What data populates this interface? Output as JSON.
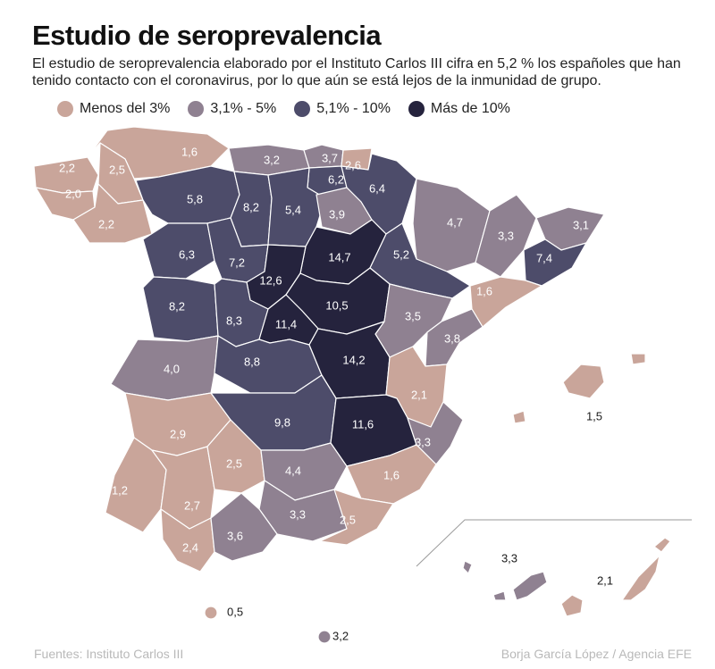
{
  "header": {
    "title": "Estudio de seroprevalencia",
    "subtitle": "El estudio de seroprevalencia elaborado por el Instituto Carlos III cifra en 5,2 % los españoles que han tenido contacto con el coronavirus, por lo que aún se está lejos de la inmunidad de grupo."
  },
  "legend": [
    {
      "label": "Menos del 3%",
      "color": "#c9a59a"
    },
    {
      "label": "3,1% - 5%",
      "color": "#8f8191"
    },
    {
      "label": "5,1% - 10%",
      "color": "#4d4c6a"
    },
    {
      "label": "Más de 10%",
      "color": "#25233d"
    }
  ],
  "colors": {
    "border": "#ffffff",
    "label_light": "#ffffff",
    "label_dark": "#1b1b1b"
  },
  "provinces": [
    {
      "id": "lugo",
      "value": "1,6",
      "tier": 0
    },
    {
      "id": "a-coruna",
      "value": "2,2",
      "tier": 0
    },
    {
      "id": "lugo-south",
      "value": "2,5",
      "tier": 0
    },
    {
      "id": "pontevedra",
      "value": "2,0",
      "tier": 0
    },
    {
      "id": "ourense",
      "value": "2,2",
      "tier": 0
    },
    {
      "id": "cantabria",
      "value": "3,2",
      "tier": 1
    },
    {
      "id": "bizkaia",
      "value": "3,7",
      "tier": 1
    },
    {
      "id": "gipuzkoa",
      "value": "2,6",
      "tier": 0
    },
    {
      "id": "alava",
      "value": "6,2",
      "tier": 2
    },
    {
      "id": "navarra",
      "value": "6,4",
      "tier": 2
    },
    {
      "id": "leon",
      "value": "5,8",
      "tier": 2
    },
    {
      "id": "palencia",
      "value": "8,2",
      "tier": 2
    },
    {
      "id": "burgos",
      "value": "5,4",
      "tier": 2
    },
    {
      "id": "la-rioja",
      "value": "3,9",
      "tier": 1
    },
    {
      "id": "huesca",
      "value": "4,7",
      "tier": 1
    },
    {
      "id": "lleida",
      "value": "3,3",
      "tier": 1
    },
    {
      "id": "girona",
      "value": "3,1",
      "tier": 1
    },
    {
      "id": "zamora",
      "value": "6,3",
      "tier": 2
    },
    {
      "id": "valladolid",
      "value": "7,2",
      "tier": 2
    },
    {
      "id": "soria",
      "value": "14,7",
      "tier": 3
    },
    {
      "id": "zaragoza",
      "value": "5,2",
      "tier": 2
    },
    {
      "id": "barcelona",
      "value": "7,4",
      "tier": 2
    },
    {
      "id": "segovia",
      "value": "12,6",
      "tier": 3
    },
    {
      "id": "tarragona",
      "value": "1,6",
      "tier": 0
    },
    {
      "id": "salamanca",
      "value": "8,2",
      "tier": 2
    },
    {
      "id": "avila",
      "value": "8,3",
      "tier": 2
    },
    {
      "id": "guadalajara",
      "value": "10,5",
      "tier": 3
    },
    {
      "id": "madrid",
      "value": "11,4",
      "tier": 3
    },
    {
      "id": "teruel",
      "value": "3,5",
      "tier": 1
    },
    {
      "id": "castellon",
      "value": "3,8",
      "tier": 1
    },
    {
      "id": "caceres",
      "value": "4,0",
      "tier": 1
    },
    {
      "id": "toledo",
      "value": "8,8",
      "tier": 2
    },
    {
      "id": "cuenca",
      "value": "14,2",
      "tier": 3
    },
    {
      "id": "valencia",
      "value": "2,1",
      "tier": 0
    },
    {
      "id": "baleares",
      "value": "1,5",
      "tier": 0
    },
    {
      "id": "badajoz",
      "value": "2,9",
      "tier": 0
    },
    {
      "id": "ciudad-real",
      "value": "9,8",
      "tier": 2
    },
    {
      "id": "albacete",
      "value": "11,6",
      "tier": 3
    },
    {
      "id": "alicante",
      "value": "3,3",
      "tier": 1
    },
    {
      "id": "huelva",
      "value": "1,2",
      "tier": 0
    },
    {
      "id": "sevilla",
      "value": "2,7",
      "tier": 0
    },
    {
      "id": "cordoba",
      "value": "2,5",
      "tier": 0
    },
    {
      "id": "jaen",
      "value": "4,4",
      "tier": 1
    },
    {
      "id": "murcia",
      "value": "1,6",
      "tier": 0
    },
    {
      "id": "granada",
      "value": "3,3",
      "tier": 1
    },
    {
      "id": "almeria",
      "value": "2,5",
      "tier": 0
    },
    {
      "id": "cadiz",
      "value": "2,4",
      "tier": 0
    },
    {
      "id": "malaga",
      "value": "3,6",
      "tier": 1
    },
    {
      "id": "ceuta",
      "value": "0,5",
      "tier": 0
    },
    {
      "id": "melilla",
      "value": "3,2",
      "tier": 1
    },
    {
      "id": "tenerife",
      "value": "3,3",
      "tier": 1
    },
    {
      "id": "las-palmas",
      "value": "2,1",
      "tier": 0
    }
  ],
  "footer": {
    "source": "Fuentes: Instituto Carlos III",
    "credit": "Borja García López / Agencia EFE"
  }
}
